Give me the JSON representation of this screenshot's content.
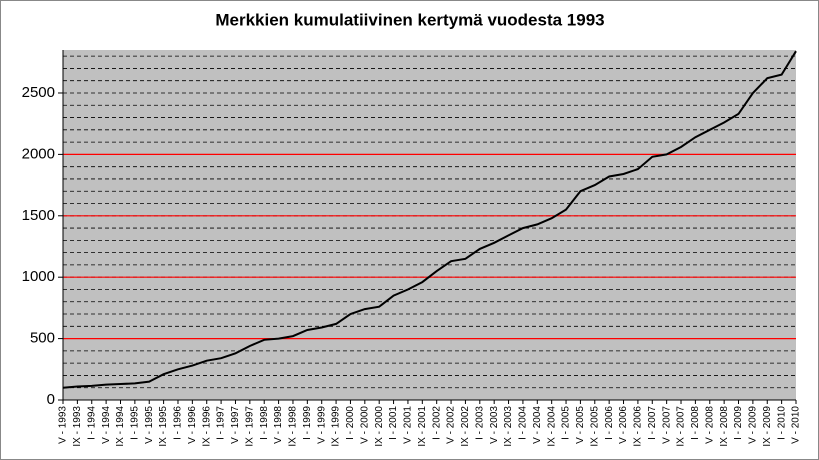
{
  "chart_data": {
    "type": "line",
    "title": "Merkkien kumulatiivinen kertymä vuodesta 1993",
    "categories": [
      "V - 1993",
      "IX - 1993",
      "I - 1994",
      "V - 1994",
      "IX - 1994",
      "I - 1995",
      "V - 1995",
      "IX - 1995",
      "I - 1996",
      "V - 1996",
      "IX - 1996",
      "I - 1997",
      "V - 1997",
      "IX - 1997",
      "I - 1998",
      "V - 1998",
      "IX - 1998",
      "I - 1999",
      "V - 1999",
      "IX - 1999",
      "I - 2000",
      "V - 2000",
      "IX - 2000",
      "I - 2001",
      "V - 2001",
      "IX - 2001",
      "I - 2002",
      "V - 2002",
      "IX - 2002",
      "I - 2003",
      "V - 2003",
      "IX - 2003",
      "I - 2004",
      "V - 2004",
      "IX - 2004",
      "I - 2005",
      "V - 2005",
      "IX - 2005",
      "I - 2006",
      "V - 2006",
      "IX - 2006",
      "I - 2007",
      "V - 2007",
      "IX - 2007",
      "I - 2008",
      "V - 2008",
      "IX - 2008",
      "I - 2009",
      "V - 2009",
      "IX - 2009",
      "I - 2010",
      "V - 2010"
    ],
    "values": [
      100,
      110,
      115,
      125,
      130,
      135,
      150,
      210,
      250,
      280,
      320,
      340,
      380,
      440,
      490,
      500,
      520,
      570,
      590,
      620,
      700,
      740,
      760,
      850,
      900,
      960,
      1050,
      1130,
      1150,
      1230,
      1280,
      1340,
      1400,
      1430,
      1480,
      1550,
      1700,
      1750,
      1820,
      1840,
      1880,
      1980,
      2000,
      2060,
      2140,
      2200,
      2260,
      2330,
      2500,
      2620,
      2650,
      2840
    ],
    "color": "#000000",
    "ylim": [
      0,
      2850
    ],
    "yticks": [
      0,
      500,
      1000,
      1500,
      2000,
      2500
    ],
    "minor_grid_step": 100,
    "reference_lines": [
      500,
      1000,
      1500,
      2000
    ],
    "reference_color": "#ff0000",
    "plot_background": "#c0c0c0"
  }
}
